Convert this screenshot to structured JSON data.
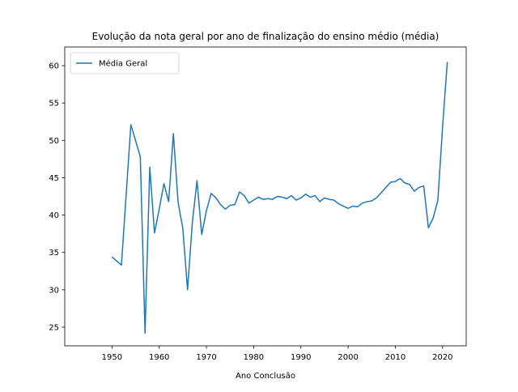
{
  "chart_data": {
    "type": "line",
    "title": "Evolução da nota geral por ano de finalização do ensino médio (média)",
    "xlabel": "Ano Conclusão",
    "ylabel": "",
    "xlim": [
      1940,
      2025
    ],
    "ylim": [
      22.5,
      62.5
    ],
    "xticks": [
      1950,
      1960,
      1970,
      1980,
      1990,
      2000,
      2010,
      2020
    ],
    "yticks": [
      25,
      30,
      35,
      40,
      45,
      50,
      55,
      60
    ],
    "grid": false,
    "legend": {
      "position": "top-left",
      "entries": [
        "Média Geral"
      ]
    },
    "series": [
      {
        "name": "Média Geral",
        "color": "#1f77b4",
        "x": [
          1950,
          1952,
          1954,
          1956,
          1957,
          1958,
          1959,
          1960,
          1961,
          1962,
          1963,
          1964,
          1965,
          1966,
          1967,
          1968,
          1969,
          1970,
          1971,
          1972,
          1973,
          1974,
          1975,
          1976,
          1977,
          1978,
          1979,
          1980,
          1981,
          1982,
          1983,
          1984,
          1985,
          1986,
          1987,
          1988,
          1989,
          1990,
          1991,
          1992,
          1993,
          1994,
          1995,
          1996,
          1997,
          1998,
          1999,
          2000,
          2001,
          2002,
          2003,
          2004,
          2005,
          2006,
          2007,
          2008,
          2009,
          2010,
          2011,
          2012,
          2013,
          2014,
          2015,
          2016,
          2017,
          2018,
          2019,
          2020,
          2021
        ],
        "y": [
          34.4,
          33.3,
          52.1,
          47.8,
          24.2,
          46.4,
          37.6,
          40.8,
          44.2,
          41.8,
          50.9,
          41.7,
          38.2,
          30.0,
          38.9,
          44.6,
          37.4,
          40.6,
          42.9,
          42.3,
          41.4,
          40.8,
          41.3,
          41.4,
          43.1,
          42.6,
          41.6,
          42.0,
          42.4,
          42.1,
          42.2,
          42.1,
          42.5,
          42.4,
          42.2,
          42.6,
          42.0,
          42.3,
          42.8,
          42.4,
          42.6,
          41.8,
          42.3,
          42.1,
          42.0,
          41.5,
          41.2,
          40.9,
          41.2,
          41.1,
          41.6,
          41.8,
          41.9,
          42.3,
          43.0,
          43.7,
          44.4,
          44.5,
          44.9,
          44.3,
          44.1,
          43.2,
          43.7,
          43.9,
          38.3,
          39.6,
          42.0,
          51.8,
          60.5
        ]
      }
    ]
  }
}
